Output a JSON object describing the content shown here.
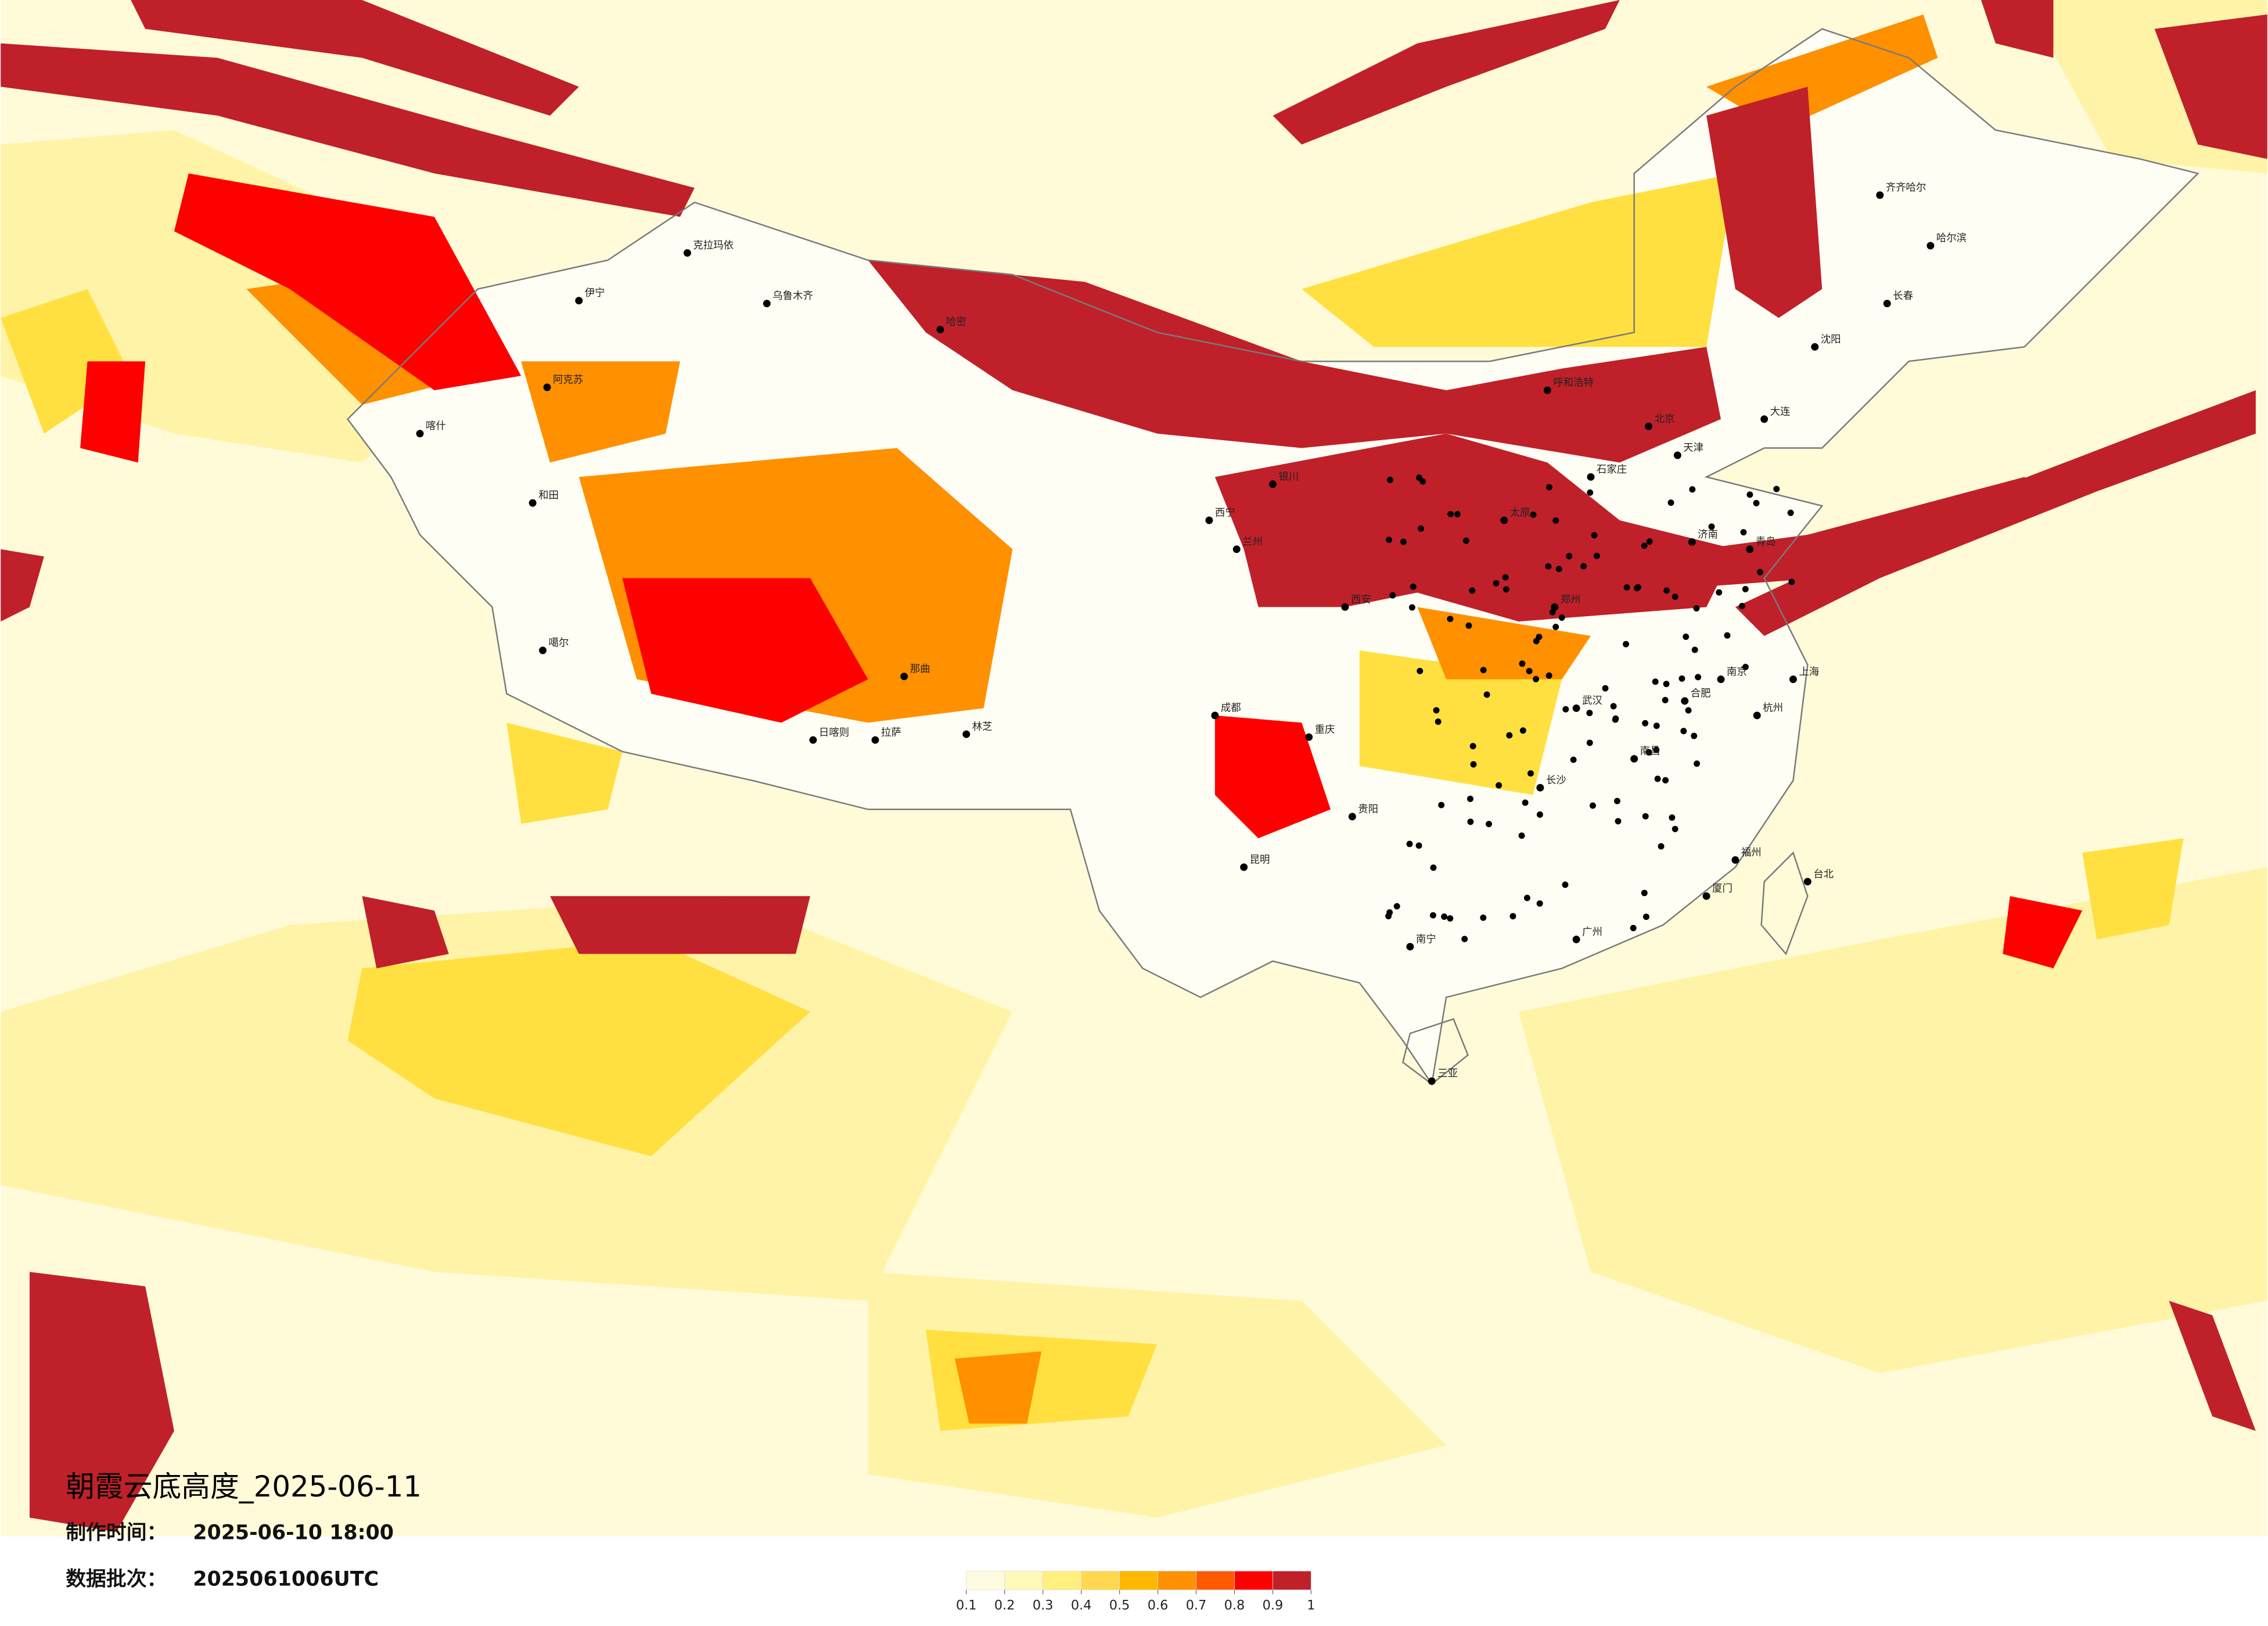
{
  "title": "朝霞云底高度_2025-06-11",
  "made_label": "制作时间：",
  "made_time": "2025-06-10 18:00",
  "batch_label": "数据批次：",
  "batch": "2025061006UTC",
  "legend": {
    "colors": [
      "#fffbe0",
      "#fff8b8",
      "#fff080",
      "#ffd850",
      "#ffb800",
      "#ff9000",
      "#ff5a00",
      "#ff0000",
      "#c0202a"
    ],
    "ticks": [
      0.1,
      0.2,
      0.3,
      0.4,
      0.5,
      0.6,
      0.7,
      0.8,
      0.9,
      1
    ]
  },
  "cities": [
    "克拉玛依",
    "伊宁",
    "乌鲁木齐",
    "阿克苏",
    "喀什",
    "和田",
    "哈密",
    "噶尔",
    "日喀则",
    "拉萨",
    "那曲",
    "林芝",
    "西宁",
    "兰州",
    "银川",
    "呼和浩特",
    "北京",
    "天津",
    "石家庄",
    "太原",
    "西安",
    "成都",
    "重庆",
    "贵阳",
    "昆明",
    "南宁",
    "广州",
    "三亚",
    "长沙",
    "武汉",
    "南昌",
    "福州",
    "杭州",
    "上海",
    "南京",
    "合肥",
    "郑州",
    "济南",
    "青岛",
    "沈阳",
    "长春",
    "哈尔滨",
    "齐齐哈尔",
    "大连",
    "台北",
    "厦门"
  ]
}
